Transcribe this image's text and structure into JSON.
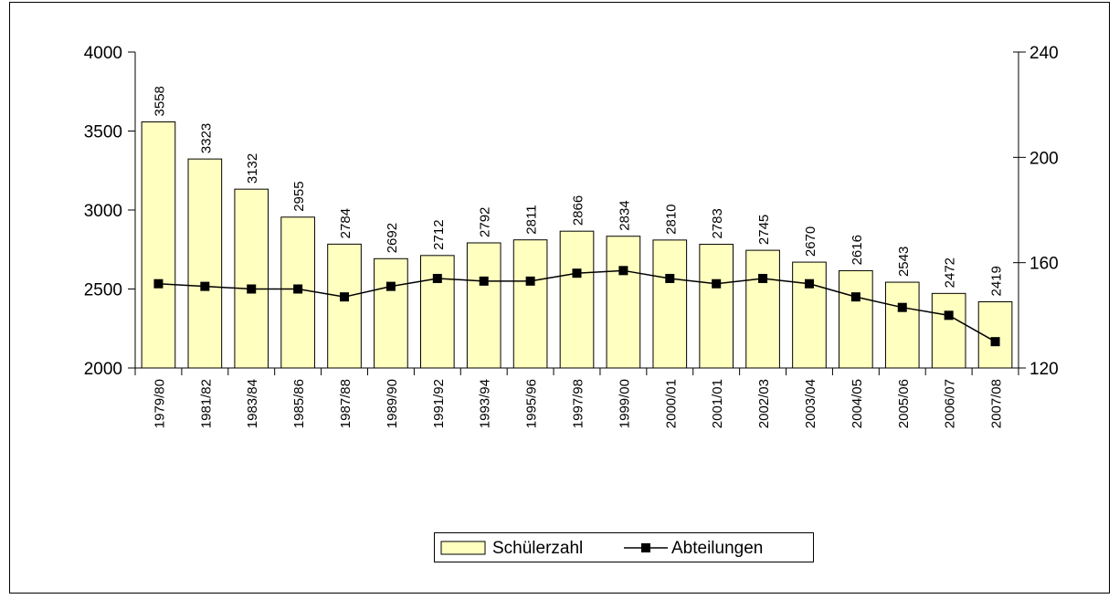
{
  "chart_data": {
    "type": "bar",
    "categories": [
      "1979/80",
      "1981/82",
      "1983/84",
      "1985/86",
      "1987/88",
      "1989/90",
      "1991/92",
      "1993/94",
      "1995/96",
      "1997/98",
      "1999/00",
      "2000/01",
      "2001/01",
      "2002/03",
      "2003/04",
      "2004/05",
      "2005/06",
      "2006/07",
      "2007/08"
    ],
    "series": [
      {
        "name": "Schülerzahl",
        "type": "bar",
        "color": "#ffffc0",
        "values": [
          3558,
          3323,
          3132,
          2955,
          2784,
          2692,
          2712,
          2792,
          2811,
          2866,
          2834,
          2810,
          2783,
          2745,
          2670,
          2616,
          2543,
          2472,
          2419
        ]
      },
      {
        "name": "Abteilungen",
        "type": "line",
        "axis": "y2",
        "color": "#000000",
        "values": [
          152,
          151,
          150,
          150,
          147,
          151,
          154,
          153,
          153,
          156,
          157,
          154,
          152,
          154,
          152,
          147,
          143,
          140,
          130
        ]
      }
    ],
    "ylim": [
      2000,
      4000
    ],
    "yticks": [
      2000,
      2500,
      3000,
      3500,
      4000
    ],
    "y2lim": [
      120,
      240
    ],
    "y2ticks": [
      120,
      160,
      200,
      240
    ],
    "legend": "bottom"
  }
}
